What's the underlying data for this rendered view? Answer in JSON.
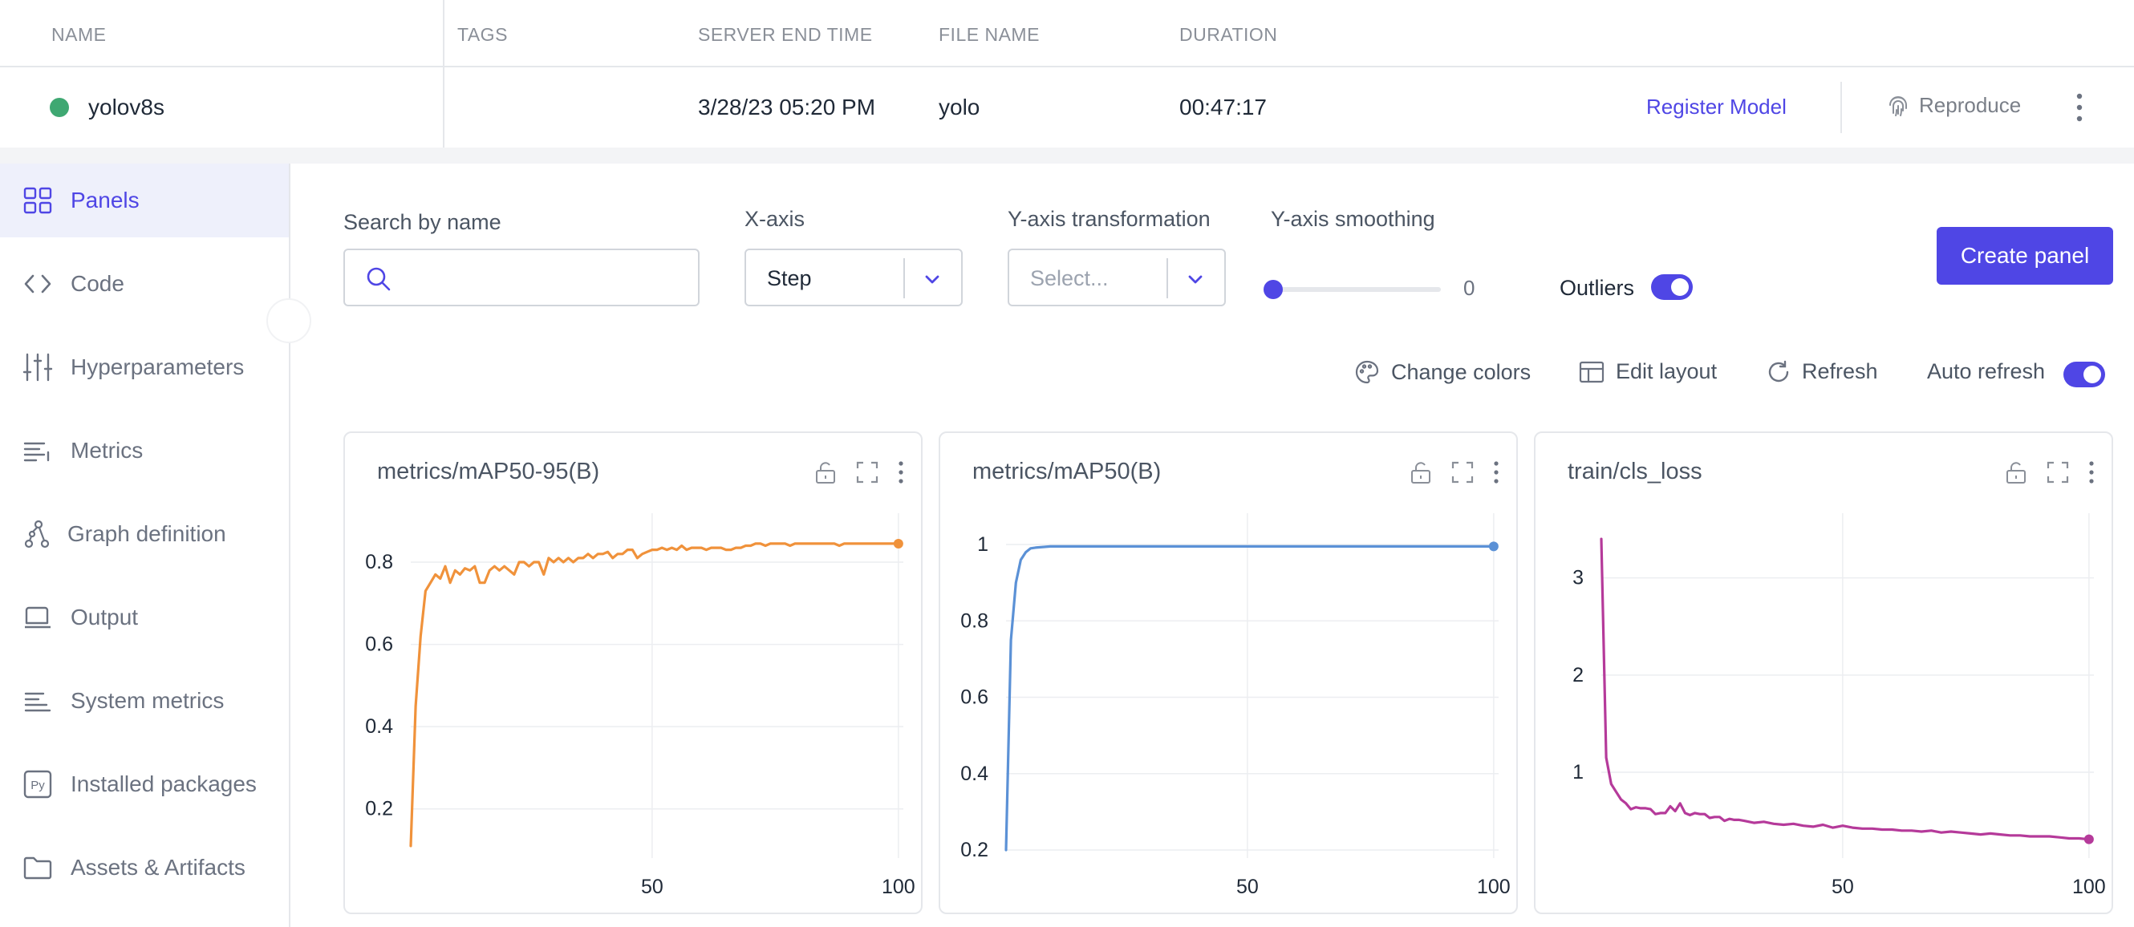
{
  "table": {
    "headers": {
      "name": "NAME",
      "tags": "TAGS",
      "server_end_time": "SERVER END TIME",
      "file_name": "FILE NAME",
      "duration": "DURATION"
    },
    "row": {
      "name": "yolov8s",
      "status_color": "#3fa872",
      "tags": "",
      "server_end_time": "3/28/23 05:20 PM",
      "file_name": "yolo",
      "duration": "00:47:17"
    },
    "actions": {
      "register": "Register Model",
      "reproduce": "Reproduce"
    }
  },
  "sidebar": {
    "items": [
      {
        "label": "Panels",
        "icon": "grid-icon",
        "active": true
      },
      {
        "label": "Code",
        "icon": "code-icon"
      },
      {
        "label": "Hyperparameters",
        "icon": "sliders-icon"
      },
      {
        "label": "Metrics",
        "icon": "metrics-icon"
      },
      {
        "label": "Graph definition",
        "icon": "graph-icon"
      },
      {
        "label": "Output",
        "icon": "output-icon"
      },
      {
        "label": "System metrics",
        "icon": "system-icon"
      },
      {
        "label": "Installed packages",
        "icon": "python-icon"
      },
      {
        "label": "Assets & Artifacts",
        "icon": "folder-icon"
      }
    ]
  },
  "toolbar": {
    "search_label": "Search by name",
    "search_value": "",
    "xaxis_label": "X-axis",
    "xaxis_value": "Step",
    "ytransform_label": "Y-axis transformation",
    "ytransform_placeholder": "Select...",
    "smoothing_label": "Y-axis smoothing",
    "smoothing_value": "0",
    "outliers_label": "Outliers",
    "outliers_on": true,
    "create_panel": "Create panel",
    "change_colors": "Change colors",
    "edit_layout": "Edit layout",
    "refresh": "Refresh",
    "auto_refresh": "Auto refresh",
    "auto_refresh_on": true,
    "accent": "#4f46e5"
  },
  "chart_data": [
    {
      "type": "line",
      "title": "metrics/mAP50-95(B)",
      "color": "#f0923b",
      "xlim": [
        1,
        101
      ],
      "ylim": [
        0.1,
        0.88
      ],
      "xticks": [
        50,
        100
      ],
      "yticks": [
        0.2,
        0.4,
        0.6,
        0.8
      ],
      "series": [
        {
          "x": [
            1,
            2,
            3,
            4,
            5,
            6,
            7,
            8,
            9,
            10,
            11,
            12,
            13,
            14,
            15,
            16,
            17,
            18,
            19,
            20,
            21,
            22,
            23,
            24,
            25,
            26,
            27,
            28,
            29,
            30,
            31,
            32,
            33,
            34,
            35,
            36,
            37,
            38,
            39,
            40,
            41,
            42,
            43,
            44,
            45,
            46,
            47,
            48,
            49,
            50,
            51,
            52,
            53,
            54,
            55,
            56,
            57,
            58,
            59,
            60,
            61,
            62,
            63,
            64,
            65,
            66,
            67,
            68,
            69,
            70,
            71,
            72,
            73,
            74,
            75,
            76,
            77,
            78,
            79,
            80,
            81,
            82,
            83,
            84,
            85,
            86,
            87,
            88,
            89,
            90,
            91,
            92,
            93,
            94,
            95,
            96,
            97,
            98,
            99,
            100
          ],
          "values": [
            0.11,
            0.45,
            0.62,
            0.73,
            0.75,
            0.77,
            0.76,
            0.79,
            0.75,
            0.78,
            0.77,
            0.785,
            0.78,
            0.79,
            0.75,
            0.75,
            0.78,
            0.79,
            0.78,
            0.79,
            0.78,
            0.77,
            0.8,
            0.8,
            0.79,
            0.8,
            0.8,
            0.77,
            0.81,
            0.8,
            0.81,
            0.8,
            0.81,
            0.8,
            0.81,
            0.81,
            0.82,
            0.81,
            0.82,
            0.82,
            0.825,
            0.81,
            0.82,
            0.82,
            0.83,
            0.83,
            0.81,
            0.82,
            0.825,
            0.83,
            0.83,
            0.835,
            0.83,
            0.835,
            0.83,
            0.84,
            0.83,
            0.835,
            0.835,
            0.835,
            0.83,
            0.835,
            0.835,
            0.835,
            0.83,
            0.83,
            0.835,
            0.835,
            0.84,
            0.84,
            0.845,
            0.845,
            0.84,
            0.845,
            0.845,
            0.845,
            0.845,
            0.84,
            0.845,
            0.845,
            0.845,
            0.845,
            0.845,
            0.845,
            0.845,
            0.845,
            0.845,
            0.84,
            0.845,
            0.845,
            0.845,
            0.845,
            0.845,
            0.845,
            0.845,
            0.845,
            0.845,
            0.845,
            0.845,
            0.845
          ]
        }
      ]
    },
    {
      "type": "line",
      "title": "metrics/mAP50(B)",
      "color": "#5b91d6",
      "xlim": [
        1,
        101
      ],
      "ylim": [
        0.2,
        1.04
      ],
      "xticks": [
        50,
        100
      ],
      "yticks": [
        0.2,
        0.4,
        0.6,
        0.8,
        1
      ],
      "series": [
        {
          "x": [
            1,
            2,
            3,
            4,
            5,
            6,
            7,
            8,
            9,
            10,
            12,
            15,
            20,
            25,
            30,
            40,
            50,
            60,
            70,
            80,
            90,
            100
          ],
          "values": [
            0.2,
            0.75,
            0.9,
            0.96,
            0.98,
            0.99,
            0.992,
            0.993,
            0.994,
            0.995,
            0.995,
            0.995,
            0.995,
            0.995,
            0.995,
            0.995,
            0.995,
            0.995,
            0.995,
            0.995,
            0.995,
            0.995
          ]
        }
      ]
    },
    {
      "type": "line",
      "title": "train/cls_loss",
      "color": "#b53a9a",
      "xlim": [
        1,
        101
      ],
      "ylim": [
        0.2,
        3.5
      ],
      "xticks": [
        50,
        100
      ],
      "yticks": [
        1,
        2,
        3
      ],
      "series": [
        {
          "x": [
            1,
            2,
            3,
            4,
            5,
            6,
            7,
            8,
            9,
            10,
            11,
            12,
            13,
            14,
            15,
            16,
            17,
            18,
            19,
            20,
            21,
            22,
            23,
            24,
            25,
            26,
            27,
            28,
            29,
            30,
            32,
            34,
            36,
            38,
            40,
            42,
            44,
            46,
            48,
            50,
            52,
            54,
            56,
            58,
            60,
            62,
            64,
            66,
            68,
            70,
            72,
            74,
            76,
            78,
            80,
            82,
            84,
            86,
            88,
            90,
            92,
            94,
            96,
            98,
            100
          ],
          "values": [
            3.4,
            1.15,
            0.88,
            0.8,
            0.72,
            0.68,
            0.62,
            0.64,
            0.63,
            0.63,
            0.62,
            0.57,
            0.58,
            0.58,
            0.65,
            0.6,
            0.68,
            0.58,
            0.56,
            0.58,
            0.57,
            0.57,
            0.53,
            0.54,
            0.54,
            0.5,
            0.52,
            0.51,
            0.51,
            0.5,
            0.48,
            0.49,
            0.47,
            0.46,
            0.47,
            0.45,
            0.44,
            0.46,
            0.43,
            0.45,
            0.43,
            0.42,
            0.42,
            0.41,
            0.41,
            0.4,
            0.4,
            0.39,
            0.4,
            0.38,
            0.39,
            0.38,
            0.37,
            0.36,
            0.37,
            0.36,
            0.35,
            0.35,
            0.34,
            0.34,
            0.34,
            0.33,
            0.32,
            0.32,
            0.31
          ]
        }
      ]
    }
  ]
}
